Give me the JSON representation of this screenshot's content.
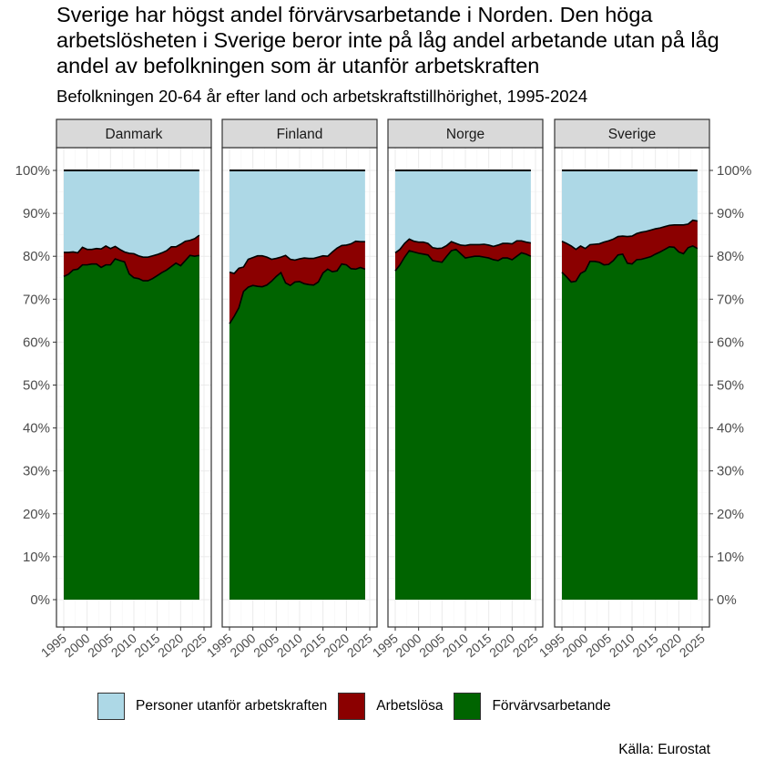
{
  "chart_data": {
    "type": "area",
    "title": "Sverige har högst andel förvärvsarbetande i Norden. Den höga arbetslösheten i Sverige beror inte på låg andel arbetande utan på låg andel av befolkningen som är utanför arbetskraften",
    "subtitle": "Befolkningen 20-64 år efter land och arbetskraftstillhörighet, 1995-2024",
    "source": "Källa: Eurostat",
    "xlabel": "",
    "ylabel": "",
    "xlim": [
      1995,
      2025
    ],
    "ylim": [
      0,
      100
    ],
    "x_ticks": [
      "1995",
      "2000",
      "2005",
      "2010",
      "2015",
      "2020",
      "2025"
    ],
    "y_ticks": [
      "0%",
      "10%",
      "20%",
      "30%",
      "40%",
      "50%",
      "60%",
      "70%",
      "80%",
      "90%",
      "100%"
    ],
    "legend": [
      {
        "label": "Personer utanför arbetskraften",
        "color": "#add8e6"
      },
      {
        "label": "Arbetslösa",
        "color": "#8b0000"
      },
      {
        "label": "Förvärvsarbetande",
        "color": "#006400"
      }
    ],
    "legend_position": "bottom",
    "years": [
      1995,
      1996,
      1997,
      1998,
      1999,
      2000,
      2001,
      2002,
      2003,
      2004,
      2005,
      2006,
      2007,
      2008,
      2009,
      2010,
      2011,
      2012,
      2013,
      2014,
      2015,
      2016,
      2017,
      2018,
      2019,
      2020,
      2021,
      2022,
      2023,
      2024
    ],
    "panels": [
      {
        "name": "Danmark",
        "employed": [
          75.3,
          75.8,
          76.8,
          77.0,
          78.0,
          78.0,
          78.2,
          78.2,
          77.4,
          78.0,
          78.0,
          79.4,
          79.0,
          78.7,
          75.9,
          75.0,
          74.8,
          74.3,
          74.3,
          74.8,
          75.5,
          76.2,
          76.8,
          77.6,
          78.4,
          77.8,
          79.0,
          80.2,
          80.0,
          80.2
        ],
        "labour_force": [
          80.9,
          80.9,
          81.0,
          80.8,
          82.1,
          81.6,
          81.6,
          81.8,
          81.7,
          82.4,
          81.8,
          82.3,
          81.6,
          81.0,
          80.7,
          80.6,
          80.1,
          79.8,
          79.8,
          80.1,
          80.4,
          80.8,
          81.3,
          82.2,
          82.2,
          82.8,
          83.5,
          83.7,
          84.1,
          84.9
        ]
      },
      {
        "name": "Finland",
        "employed": [
          64.3,
          66.0,
          68.0,
          71.8,
          72.8,
          73.2,
          73.0,
          72.9,
          73.3,
          74.2,
          75.3,
          76.2,
          73.8,
          73.2,
          74.0,
          74.1,
          73.6,
          73.4,
          73.3,
          74.0,
          76.1,
          77.0,
          76.4,
          76.6,
          78.2,
          78.0,
          77.1,
          77.0,
          77.4,
          77.0
        ],
        "labour_force": [
          76.3,
          76.0,
          77.2,
          77.5,
          79.3,
          79.7,
          80.1,
          80.1,
          79.8,
          79.3,
          79.5,
          79.8,
          80.2,
          79.3,
          79.1,
          79.4,
          79.6,
          79.5,
          79.5,
          79.8,
          80.1,
          80.0,
          81.0,
          81.9,
          82.5,
          82.6,
          82.9,
          83.5,
          83.4,
          83.4
        ]
      },
      {
        "name": "Norge",
        "employed": [
          76.6,
          78.0,
          79.8,
          81.3,
          81.0,
          80.7,
          80.5,
          80.3,
          79.0,
          78.8,
          78.6,
          80.0,
          81.3,
          81.6,
          80.6,
          79.6,
          79.8,
          80.0,
          80.0,
          79.8,
          79.6,
          79.2,
          79.0,
          79.6,
          79.6,
          79.2,
          80.0,
          80.8,
          80.5,
          80.0
        ]
      },
      {
        "name": "Sverige",
        "employed": [
          76.3,
          75.2,
          74.0,
          74.2,
          76.0,
          76.6,
          78.8,
          78.8,
          78.6,
          78.0,
          78.1,
          79.0,
          80.3,
          80.5,
          78.4,
          78.2,
          79.2,
          79.3,
          79.6,
          79.9,
          80.5,
          81.0,
          81.6,
          82.2,
          82.1,
          81.0,
          80.6,
          82.0,
          82.4,
          81.8
        ]
      }
    ]
  },
  "norge_lf": [
    80.8,
    81.6,
    83.0,
    84.0,
    83.5,
    83.3,
    83.3,
    83.0,
    82.0,
    81.8,
    81.9,
    82.5,
    83.4,
    83.0,
    82.6,
    82.5,
    82.7,
    82.7,
    82.7,
    82.8,
    82.6,
    82.3,
    82.6,
    83.0,
    83.0,
    82.9,
    83.6,
    83.6,
    83.3,
    83.1
  ],
  "sverige_lf": [
    83.5,
    83.0,
    82.4,
    81.6,
    82.4,
    81.8,
    82.7,
    82.8,
    82.9,
    83.3,
    83.6,
    84.0,
    84.6,
    84.7,
    84.6,
    84.7,
    85.3,
    85.6,
    85.8,
    86.1,
    86.4,
    86.6,
    86.9,
    87.2,
    87.3,
    87.3,
    87.3,
    87.5,
    88.4,
    88.2
  ]
}
